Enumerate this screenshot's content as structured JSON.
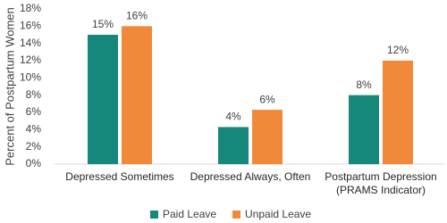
{
  "chart_data": {
    "type": "bar",
    "y_label": "Percent of Postpartum Women",
    "categories": [
      "Depressed Sometimes",
      "Depressed Always, Often",
      "Postpartum Depression (PRAMS Indicator)"
    ],
    "series": [
      {
        "name": "Paid Leave",
        "color": "#16877b",
        "values": [
          15,
          4.3,
          8
        ],
        "value_labels": [
          "15%",
          "4%",
          "8%"
        ]
      },
      {
        "name": "Unpaid Leave",
        "color": "#f08a3a",
        "values": [
          16,
          6.3,
          12
        ],
        "value_labels": [
          "16%",
          "6%",
          "12%"
        ]
      }
    ],
    "ylim": [
      0,
      18
    ],
    "yticks": [
      {
        "value": 0,
        "label": "0%"
      },
      {
        "value": 2,
        "label": "2%"
      },
      {
        "value": 4,
        "label": "4%"
      },
      {
        "value": 6,
        "label": "6%"
      },
      {
        "value": 8,
        "label": "8%"
      },
      {
        "value": 10,
        "label": "10%"
      },
      {
        "value": 12,
        "label": "12%"
      },
      {
        "value": 14,
        "label": "14%"
      },
      {
        "value": 16,
        "label": "16%"
      },
      {
        "value": 18,
        "label": "18%"
      }
    ],
    "grid": false,
    "legend": "bottom"
  }
}
